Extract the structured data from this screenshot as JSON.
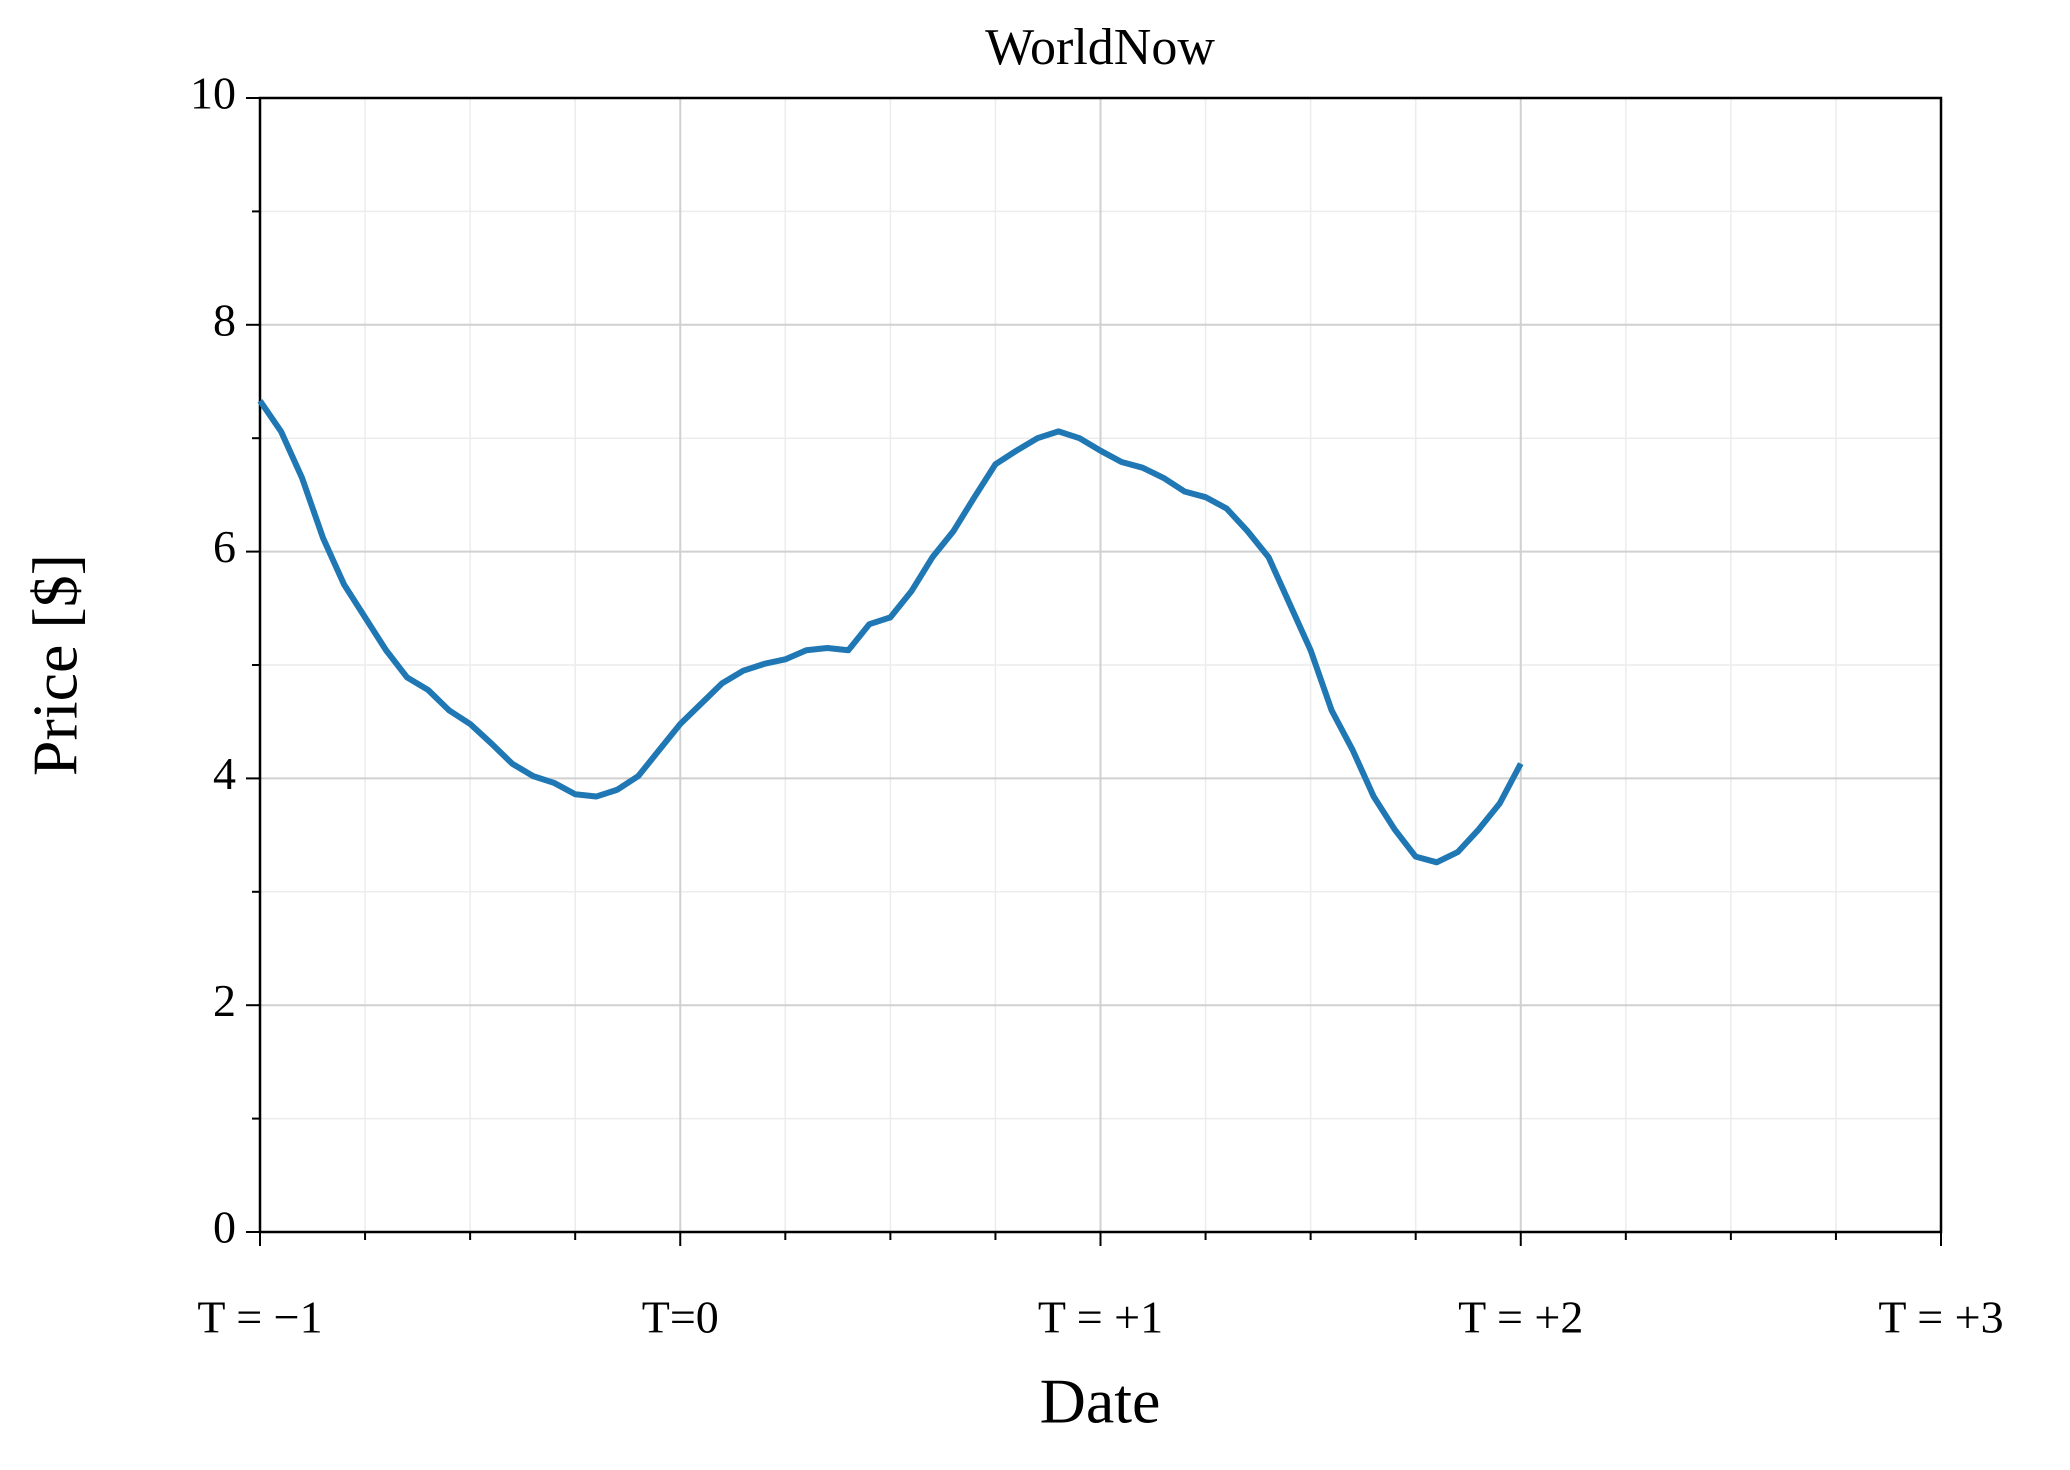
{
  "chart_data": {
    "type": "line",
    "title": "WorldNow",
    "x_label": "Date",
    "y_label": "Price [$]",
    "x": [
      -1.0,
      -0.95,
      -0.9,
      -0.85,
      -0.8,
      -0.75,
      -0.7,
      -0.65,
      -0.6,
      -0.55,
      -0.5,
      -0.45,
      -0.4,
      -0.35,
      -0.3,
      -0.25,
      -0.2,
      -0.15,
      -0.1,
      -0.05,
      0.0,
      0.05,
      0.1,
      0.15,
      0.2,
      0.25,
      0.3,
      0.35,
      0.4,
      0.45,
      0.5,
      0.55,
      0.6,
      0.65,
      0.7,
      0.75,
      0.8,
      0.85,
      0.9,
      0.95,
      1.0,
      1.05,
      1.1,
      1.15,
      1.2,
      1.25,
      1.3,
      1.35,
      1.4,
      1.45,
      1.5,
      1.55,
      1.6,
      1.65,
      1.7,
      1.75,
      1.8,
      1.85,
      1.9,
      1.95,
      2.0
    ],
    "series": [
      {
        "name": "WorldNow",
        "color": "#1f77b4",
        "values": [
          7.33,
          7.06,
          6.65,
          6.12,
          5.71,
          5.42,
          5.13,
          4.89,
          4.78,
          4.6,
          4.48,
          4.31,
          4.13,
          4.02,
          3.96,
          3.86,
          3.84,
          3.9,
          4.02,
          4.25,
          4.48,
          4.66,
          4.84,
          4.95,
          5.01,
          5.05,
          5.13,
          5.15,
          5.13,
          5.36,
          5.42,
          5.65,
          5.95,
          6.18,
          6.48,
          6.77,
          6.89,
          7.0,
          7.06,
          7.0,
          6.89,
          6.79,
          6.74,
          6.65,
          6.53,
          6.48,
          6.38,
          6.18,
          5.95,
          5.54,
          5.13,
          4.6,
          4.25,
          3.84,
          3.55,
          3.31,
          3.26,
          3.35,
          3.55,
          3.78,
          4.13
        ]
      }
    ],
    "xlim": [
      -1,
      3
    ],
    "xticks": [
      {
        "value": -1,
        "label": "T = −1"
      },
      {
        "value": 0,
        "label": "T=0"
      },
      {
        "value": 1,
        "label": "T = +1"
      },
      {
        "value": 2,
        "label": "T = +2"
      },
      {
        "value": 3,
        "label": "T = +3"
      }
    ],
    "ylim": [
      0,
      10
    ],
    "yticks": [
      0,
      2,
      4,
      6,
      8,
      10
    ],
    "grid": true
  }
}
